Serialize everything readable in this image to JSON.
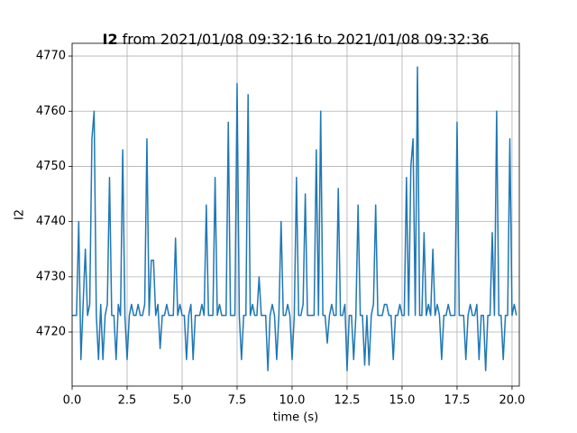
{
  "chart_data": {
    "type": "line",
    "title_prefix": "I2",
    "title": "from 2021/01/08 09:32:16 to 2021/01/08 09:32:36",
    "x_label": "time (s)",
    "y_label": "I2",
    "xlim": [
      0,
      20.33
    ],
    "ylim": [
      4710.2,
      4772.3
    ],
    "xticks": [
      {
        "value": 0,
        "label": "0.0"
      },
      2.5,
      {
        "value": 5,
        "label": "5.0"
      },
      7.5,
      {
        "value": 10,
        "label": "10.0"
      },
      12.5,
      {
        "value": 15,
        "label": "15.0"
      },
      17.5,
      {
        "value": 20,
        "label": "20.0"
      }
    ],
    "yticks": [
      4720,
      4730,
      4740,
      4750,
      4760,
      4770
    ],
    "grid": true,
    "x": [
      0,
      0.1,
      0.2,
      0.3,
      0.4,
      0.5,
      0.6,
      0.7,
      0.8,
      0.9,
      1,
      1.1,
      1.2,
      1.3,
      1.4,
      1.5,
      1.6,
      1.7,
      1.8,
      1.9,
      2,
      2.1,
      2.2,
      2.3,
      2.4,
      2.5,
      2.6,
      2.7,
      2.8,
      2.9,
      3,
      3.1,
      3.2,
      3.3,
      3.4,
      3.5,
      3.6,
      3.7,
      3.8,
      3.9,
      4,
      4.1,
      4.2,
      4.3,
      4.4,
      4.5,
      4.6,
      4.7,
      4.8,
      4.9,
      5,
      5.1,
      5.2,
      5.3,
      5.4,
      5.5,
      5.6,
      5.7,
      5.8,
      5.9,
      6,
      6.1,
      6.2,
      6.3,
      6.4,
      6.5,
      6.6,
      6.7,
      6.8,
      6.9,
      7,
      7.1,
      7.2,
      7.3,
      7.4,
      7.5,
      7.6,
      7.7,
      7.8,
      7.9,
      8,
      8.1,
      8.2,
      8.3,
      8.4,
      8.5,
      8.6,
      8.7,
      8.8,
      8.9,
      9,
      9.1,
      9.2,
      9.3,
      9.4,
      9.5,
      9.6,
      9.7,
      9.8,
      9.9,
      10,
      10.1,
      10.2,
      10.3,
      10.4,
      10.5,
      10.6,
      10.7,
      10.8,
      10.9,
      11,
      11.1,
      11.2,
      11.3,
      11.4,
      11.5,
      11.6,
      11.7,
      11.8,
      11.9,
      12,
      12.1,
      12.2,
      12.3,
      12.4,
      12.5,
      12.6,
      12.7,
      12.8,
      12.9,
      13,
      13.1,
      13.2,
      13.3,
      13.4,
      13.5,
      13.6,
      13.7,
      13.8,
      13.9,
      14,
      14.1,
      14.2,
      14.3,
      14.4,
      14.5,
      14.6,
      14.7,
      14.8,
      14.9,
      15,
      15.1,
      15.2,
      15.3,
      15.4,
      15.5,
      15.6,
      15.7,
      15.8,
      15.9,
      16,
      16.1,
      16.2,
      16.3,
      16.4,
      16.5,
      16.6,
      16.7,
      16.8,
      16.9,
      17,
      17.1,
      17.2,
      17.3,
      17.4,
      17.5,
      17.6,
      17.7,
      17.8,
      17.9,
      18,
      18.1,
      18.2,
      18.3,
      18.4,
      18.5,
      18.6,
      18.7,
      18.8,
      18.9,
      19,
      19.1,
      19.2,
      19.3,
      19.4,
      19.5,
      19.6,
      19.7,
      19.8,
      19.9,
      20,
      20.1,
      20.2
    ],
    "series": [
      {
        "color": "#1f77b4",
        "values": [
          4723,
          4723,
          4723,
          4740,
          4715,
          4725,
          4735,
          4723,
          4725,
          4755,
          4760,
          4723,
          4715,
          4725,
          4715,
          4723,
          4725,
          4748,
          4723,
          4723,
          4715,
          4725,
          4723,
          4753,
          4723,
          4715,
          4723,
          4725,
          4723,
          4723,
          4725,
          4723,
          4723,
          4725,
          4755,
          4723,
          4733,
          4733,
          4723,
          4725,
          4717,
          4723,
          4723,
          4725,
          4723,
          4723,
          4723,
          4737,
          4723,
          4725,
          4723,
          4723,
          4715,
          4723,
          4725,
          4715,
          4723,
          4723,
          4723,
          4725,
          4723,
          4743,
          4723,
          4723,
          4723,
          4748,
          4723,
          4725,
          4723,
          4723,
          4723,
          4758,
          4723,
          4723,
          4723,
          4765,
          4723,
          4715,
          4723,
          4723,
          4763,
          4723,
          4725,
          4723,
          4723,
          4730,
          4723,
          4723,
          4723,
          4713,
          4723,
          4725,
          4723,
          4715,
          4723,
          4740,
          4723,
          4723,
          4725,
          4723,
          4715,
          4723,
          4748,
          4723,
          4723,
          4725,
          4745,
          4723,
          4723,
          4723,
          4723,
          4753,
          4723,
          4760,
          4723,
          4723,
          4718,
          4723,
          4725,
          4723,
          4723,
          4746,
          4723,
          4723,
          4725,
          4713,
          4723,
          4723,
          4715,
          4723,
          4743,
          4723,
          4723,
          4714,
          4723,
          4714,
          4723,
          4725,
          4743,
          4723,
          4723,
          4723,
          4725,
          4725,
          4723,
          4723,
          4715,
          4723,
          4723,
          4725,
          4723,
          4723,
          4748,
          4723,
          4750,
          4755,
          4723,
          4768,
          4723,
          4723,
          4738,
          4723,
          4725,
          4723,
          4735,
          4723,
          4725,
          4723,
          4715,
          4723,
          4723,
          4725,
          4723,
          4723,
          4723,
          4758,
          4723,
          4723,
          4723,
          4715,
          4723,
          4725,
          4723,
          4723,
          4725,
          4715,
          4723,
          4723,
          4713,
          4723,
          4723,
          4738,
          4723,
          4760,
          4723,
          4723,
          4715,
          4723,
          4723,
          4755,
          4723,
          4725,
          4723
        ]
      }
    ]
  }
}
